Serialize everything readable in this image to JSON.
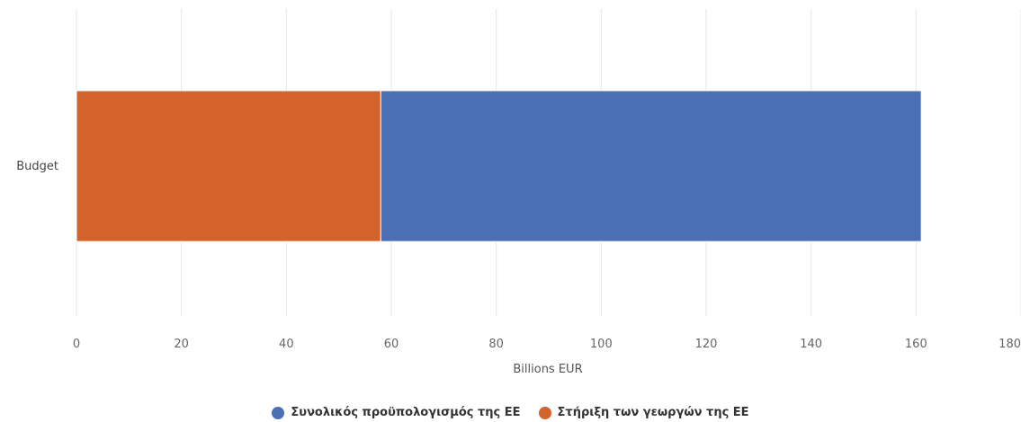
{
  "chart_data": {
    "type": "bar",
    "orientation": "horizontal",
    "stacked": true,
    "categories": [
      "Budget"
    ],
    "series": [
      {
        "name": "Συνολικός προϋπολογισμός της ΕΕ",
        "values": [
          103
        ],
        "color": "#4a6fb5"
      },
      {
        "name": "Στήριξη των γεωργών της ΕΕ",
        "values": [
          58
        ],
        "color": "#d4622b"
      }
    ],
    "xlabel": "Billions EUR",
    "ylabel": "",
    "xlim": [
      0,
      180
    ],
    "xticks": [
      "0",
      "20",
      "40",
      "60",
      "80",
      "100",
      "120",
      "140",
      "160",
      "180"
    ],
    "grid": true,
    "legend_position": "bottom-center"
  }
}
